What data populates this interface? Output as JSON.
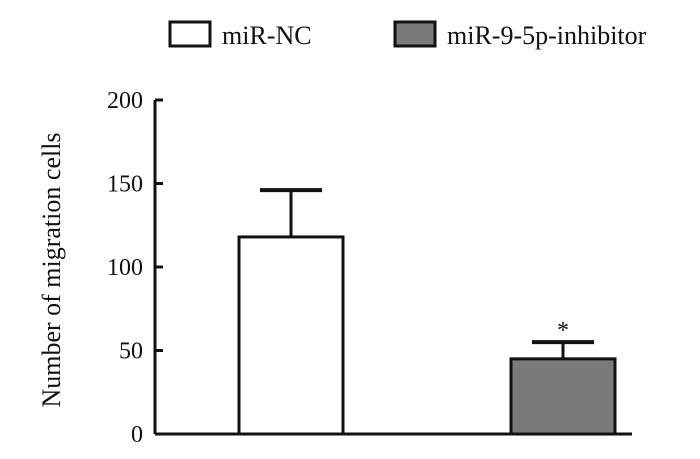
{
  "chart_data": {
    "type": "bar",
    "categories": [
      "miR-NC",
      "miR-9-5p-inhibitor"
    ],
    "series": [
      {
        "name": "miR-NC",
        "values": [
          118,
          null
        ],
        "errors": [
          28,
          null
        ],
        "color": "#ffffff"
      },
      {
        "name": "miR-9-5p-inhibitor",
        "values": [
          null,
          45
        ],
        "errors": [
          null,
          10
        ],
        "color": "#7a7a7a"
      }
    ],
    "title": "",
    "xlabel": "",
    "ylabel": "Number of migration cells",
    "ylim": [
      0,
      200
    ],
    "yticks": [
      0,
      50,
      100,
      150,
      200
    ],
    "ytick_labels": [
      "0",
      "50",
      "100",
      "150",
      "200"
    ],
    "legend": {
      "placement": "top",
      "entries": [
        {
          "label": "miR-NC",
          "color": "#ffffff"
        },
        {
          "label": "miR-9-5p-inhibitor",
          "color": "#7a7a7a"
        }
      ]
    },
    "annotations": [
      {
        "text": "*",
        "category": "miR-9-5p-inhibitor"
      }
    ],
    "grid": false,
    "category_labels_shown": false
  }
}
